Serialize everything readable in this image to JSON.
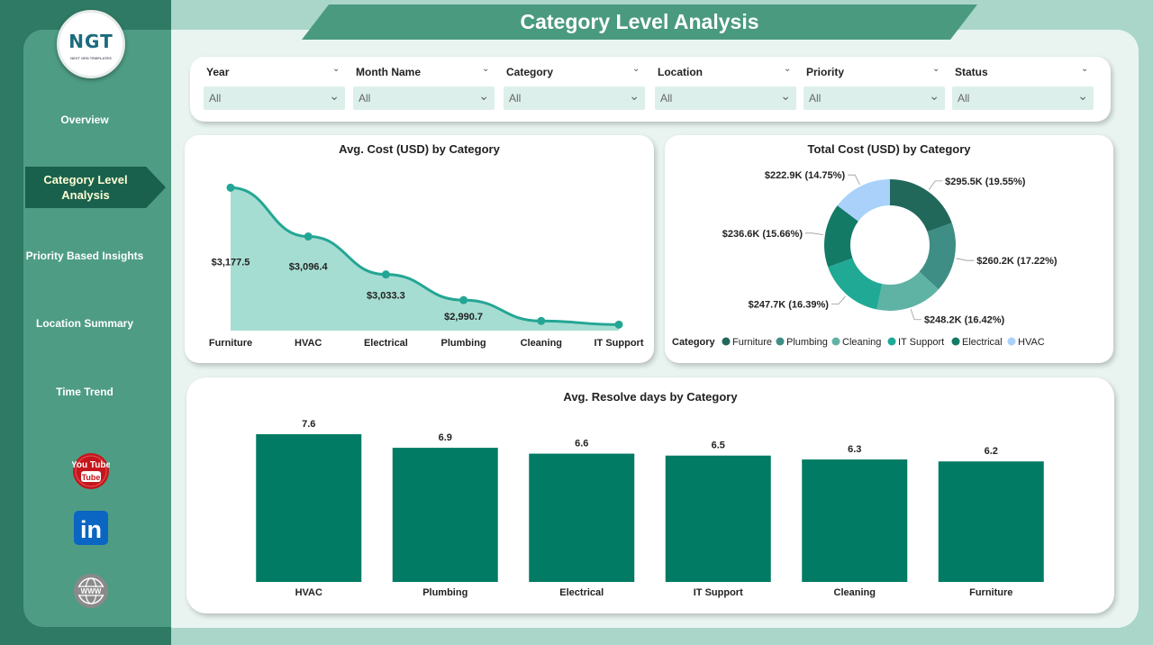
{
  "title": "Category Level Analysis",
  "logo": {
    "text": "NGT",
    "subtitle": "NEXT GEN TEMPLATES"
  },
  "nav": {
    "overview": "Overview",
    "active": "Category Level Analysis",
    "priority": "Priority Based Insights",
    "location": "Location Summary",
    "time": "Time Trend"
  },
  "social": {
    "youtube": "You Tube",
    "linkedin": "in",
    "web": "WWW"
  },
  "filters": [
    {
      "label": "Year",
      "value": "All"
    },
    {
      "label": "Month Name",
      "value": "All"
    },
    {
      "label": "Category",
      "value": "All"
    },
    {
      "label": "Location",
      "value": "All"
    },
    {
      "label": "Priority",
      "value": "All"
    },
    {
      "label": "Status",
      "value": "All"
    }
  ],
  "colors": {
    "Furniture": "#21685a",
    "Plumbing": "#3f8e85",
    "Cleaning": "#5fb3a5",
    "IT Support": "#20aa96",
    "Electrical": "#137a66",
    "HVAC": "#a9d1fa",
    "area_fill": "#a6ddd2",
    "area_line": "#24a694",
    "bar": "#027b64"
  },
  "chart_data": [
    {
      "type": "area",
      "title": "Avg. Cost (USD) by Category",
      "categories": [
        "Furniture",
        "HVAC",
        "Electrical",
        "Plumbing",
        "Cleaning",
        "IT Support"
      ],
      "values": [
        3177.5,
        3096.4,
        3033.3,
        2990.7,
        2956,
        2950
      ],
      "data_labels": [
        "$3,177.5",
        "$3,096.4",
        "$3,033.3",
        "$2,990.7",
        "",
        ""
      ],
      "ylim": [
        2940,
        3190
      ]
    },
    {
      "type": "pie",
      "title": "Total Cost (USD) by Category",
      "legend_title": "Category",
      "legend": [
        "Furniture",
        "Plumbing",
        "Cleaning",
        "IT Support",
        "Electrical",
        "HVAC"
      ],
      "slices": [
        {
          "category": "Furniture",
          "value": 295.5,
          "label": "$295.5K (19.55%)"
        },
        {
          "category": "Plumbing",
          "value": 260.2,
          "label": "$260.2K (17.22%)"
        },
        {
          "category": "Cleaning",
          "value": 248.2,
          "label": "$248.2K (16.42%)"
        },
        {
          "category": "IT Support",
          "value": 247.7,
          "label": "$247.7K (16.39%)"
        },
        {
          "category": "Electrical",
          "value": 236.6,
          "label": "$236.6K (15.66%)"
        },
        {
          "category": "HVAC",
          "value": 222.9,
          "label": "$222.9K (14.75%)"
        }
      ]
    },
    {
      "type": "bar",
      "title": "Avg. Resolve days by Category",
      "categories": [
        "HVAC",
        "Plumbing",
        "Electrical",
        "IT Support",
        "Cleaning",
        "Furniture"
      ],
      "values": [
        7.6,
        6.9,
        6.6,
        6.5,
        6.3,
        6.2
      ],
      "data_labels": [
        "7.6",
        "6.9",
        "6.6",
        "6.5",
        "6.3",
        "6.2"
      ],
      "ylim": [
        0,
        8
      ]
    }
  ]
}
